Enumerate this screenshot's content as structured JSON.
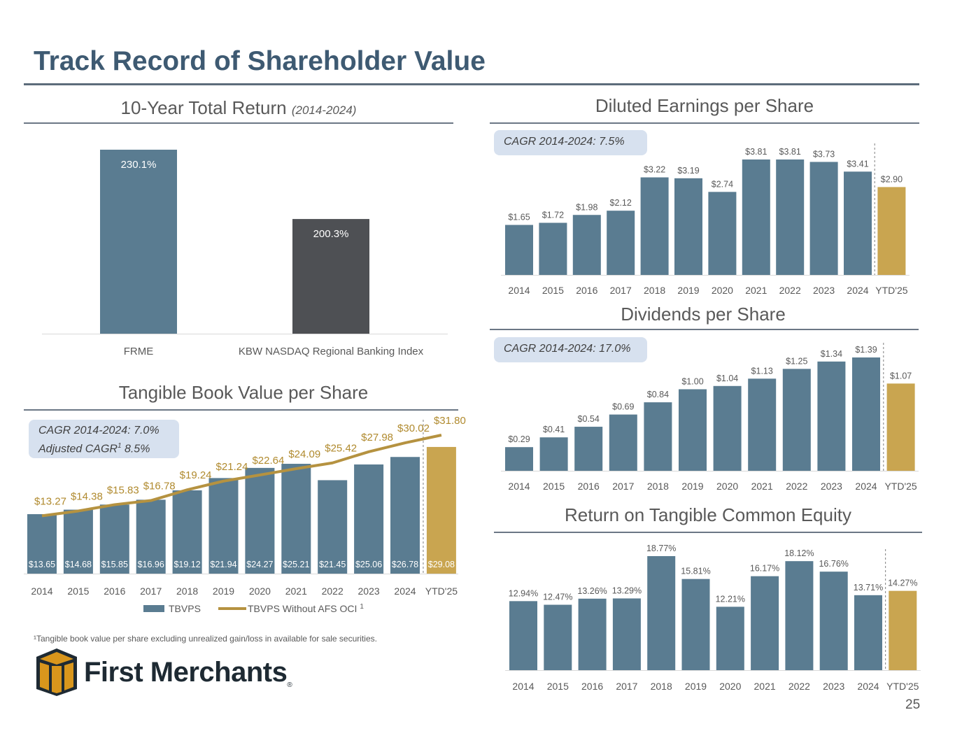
{
  "title": "Track Record of Shareholder Value",
  "page_number": "25",
  "footnote": "¹Tangible book value per share excluding unrealized gain/loss in available for sale securities.",
  "logo": {
    "text": "First Merchants",
    "mark": "®"
  },
  "colors": {
    "slate": "#5a7c91",
    "gold": "#c9a550",
    "dark": "#4e5054",
    "title": "#3e5a72",
    "cagr_box": "#d7e1ef"
  },
  "chart_data": [
    {
      "id": "total_return",
      "type": "bar",
      "title": "10-Year Total Return",
      "subtitle": "(2014-2024)",
      "categories": [
        "FRME",
        "KBW NASDAQ Regional Banking Index"
      ],
      "values": [
        230.1,
        200.3
      ],
      "data_labels": [
        "230.1%",
        "200.3%"
      ],
      "colors": [
        "#5a7c91",
        "#4e5054"
      ],
      "ylim": [
        151,
        235
      ]
    },
    {
      "id": "eps",
      "type": "bar",
      "title": "Diluted Earnings per Share",
      "annotation": "CAGR 2014-2024: 7.5%",
      "categories": [
        "2014",
        "2015",
        "2016",
        "2017",
        "2018",
        "2019",
        "2020",
        "2021",
        "2022",
        "2023",
        "2024",
        "YTD'25"
      ],
      "values": [
        1.65,
        1.72,
        1.98,
        2.12,
        3.22,
        3.19,
        2.74,
        3.81,
        3.81,
        3.73,
        3.41,
        2.9
      ],
      "data_labels": [
        "$1.65",
        "$1.72",
        "$1.98",
        "$2.12",
        "$3.22",
        "$3.19",
        "$2.74",
        "$3.81",
        "$3.81",
        "$3.73",
        "$3.41",
        "$2.90"
      ],
      "ylim": [
        0,
        4.2
      ]
    },
    {
      "id": "dividends",
      "type": "bar",
      "title": "Dividends per Share",
      "annotation": "CAGR 2014-2024: 17.0%",
      "categories": [
        "2014",
        "2015",
        "2016",
        "2017",
        "2018",
        "2019",
        "2020",
        "2021",
        "2022",
        "2023",
        "2024",
        "YTD'25"
      ],
      "values": [
        0.29,
        0.41,
        0.54,
        0.69,
        0.84,
        1.0,
        1.04,
        1.13,
        1.25,
        1.34,
        1.39,
        1.07
      ],
      "data_labels": [
        "$0.29",
        "$0.41",
        "$0.54",
        "$0.69",
        "$0.84",
        "$1.00",
        "$1.04",
        "$1.13",
        "$1.25",
        "$1.34",
        "$1.39",
        "$1.07"
      ],
      "ylim": [
        0,
        1.5
      ]
    },
    {
      "id": "rotce",
      "type": "bar",
      "title": "Return on Tangible Common Equity",
      "categories": [
        "2014",
        "2015",
        "2016",
        "2017",
        "2018",
        "2019",
        "2020",
        "2021",
        "2022",
        "2023",
        "2024",
        "YTD'25"
      ],
      "values": [
        12.94,
        12.47,
        13.26,
        13.29,
        18.77,
        15.81,
        12.21,
        16.17,
        18.12,
        16.76,
        13.71,
        14.27
      ],
      "data_labels": [
        "12.94%",
        "12.47%",
        "13.26%",
        "13.29%",
        "18.77%",
        "15.81%",
        "12.21%",
        "16.17%",
        "18.12%",
        "16.76%",
        "13.71%",
        "14.27%"
      ],
      "ylim": [
        4,
        20
      ]
    },
    {
      "id": "tbvps",
      "type": "bar+line",
      "title": "Tangible Book Value per Share",
      "annotation": [
        "CAGR 2014-2024: 7.0%",
        "Adjusted CAGR",
        "1",
        " 8.5%"
      ],
      "categories": [
        "2014",
        "2015",
        "2016",
        "2017",
        "2018",
        "2019",
        "2020",
        "2021",
        "2022",
        "2023",
        "2024",
        "YTD'25"
      ],
      "series": [
        {
          "name": "TBVPS",
          "type": "bar",
          "values": [
            13.65,
            14.68,
            15.85,
            16.96,
            19.12,
            21.94,
            24.27,
            25.21,
            21.45,
            25.06,
            26.78,
            29.08
          ],
          "data_labels": [
            "$13.65",
            "$14.68",
            "$15.85",
            "$16.96",
            "$19.12",
            "$21.94",
            "$24.27",
            "$25.21",
            "$21.45",
            "$25.06",
            "$26.78",
            "$29.08"
          ]
        },
        {
          "name": "TBVPS Without AFS OCI",
          "name_superscript": "1",
          "type": "line",
          "values": [
            13.27,
            14.38,
            15.83,
            16.78,
            19.24,
            21.24,
            22.64,
            24.09,
            25.42,
            27.98,
            30.02,
            31.8
          ],
          "data_labels": [
            "$13.27",
            "$14.38",
            "$15.83",
            "$16.78",
            "$19.24",
            "$21.24",
            "$22.64",
            "$24.09",
            "$25.42",
            "$27.98",
            "$30.02",
            "$31.80"
          ]
        }
      ],
      "ylim": [
        0,
        33
      ],
      "legend": "bottom"
    }
  ]
}
